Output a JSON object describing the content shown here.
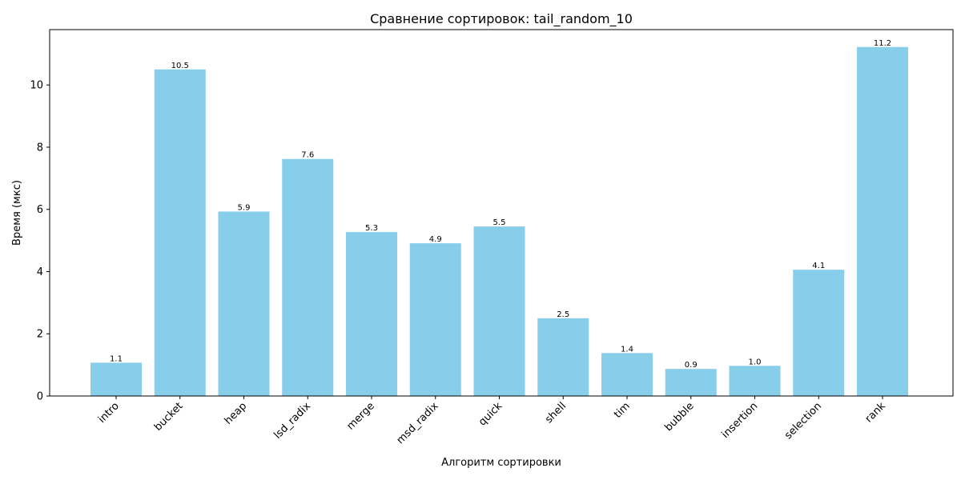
{
  "chart_data": {
    "type": "bar",
    "title": "Сравнение сортировок: tail_random_10",
    "xlabel": "Алгоритм сортировки",
    "ylabel": "Время (мкс)",
    "categories": [
      "intro",
      "bucket",
      "heap",
      "lsd_radix",
      "merge",
      "msd_radix",
      "quick",
      "shell",
      "tim",
      "bubble",
      "insertion",
      "selection",
      "rank"
    ],
    "values": [
      1.07,
      10.5,
      5.93,
      7.62,
      5.27,
      4.91,
      5.45,
      2.5,
      1.38,
      0.87,
      0.97,
      4.06,
      11.22
    ],
    "value_labels": [
      "1.1",
      "10.5",
      "5.9",
      "7.6",
      "5.3",
      "4.9",
      "5.5",
      "2.5",
      "1.4",
      "0.9",
      "1.0",
      "4.1",
      "11.2"
    ],
    "ylim": [
      0,
      11.78
    ],
    "yticks": [
      0,
      2,
      4,
      6,
      8,
      10
    ],
    "bar_color": "#87ceeb",
    "grid": false
  }
}
